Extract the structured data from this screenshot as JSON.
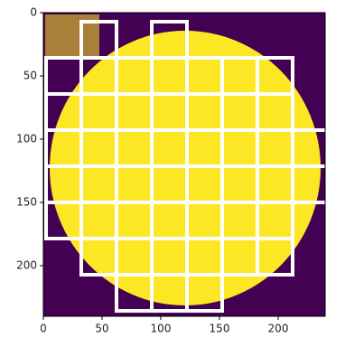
{
  "chart_data": {
    "type": "image",
    "xlim": [
      0,
      240
    ],
    "ylim": [
      240,
      0
    ],
    "xticks": [
      0,
      50,
      100,
      150,
      200
    ],
    "yticks": [
      0,
      50,
      100,
      150,
      200
    ],
    "background": "#440154",
    "foreground": "#fde725",
    "box_color": "#ffffff"
  }
}
